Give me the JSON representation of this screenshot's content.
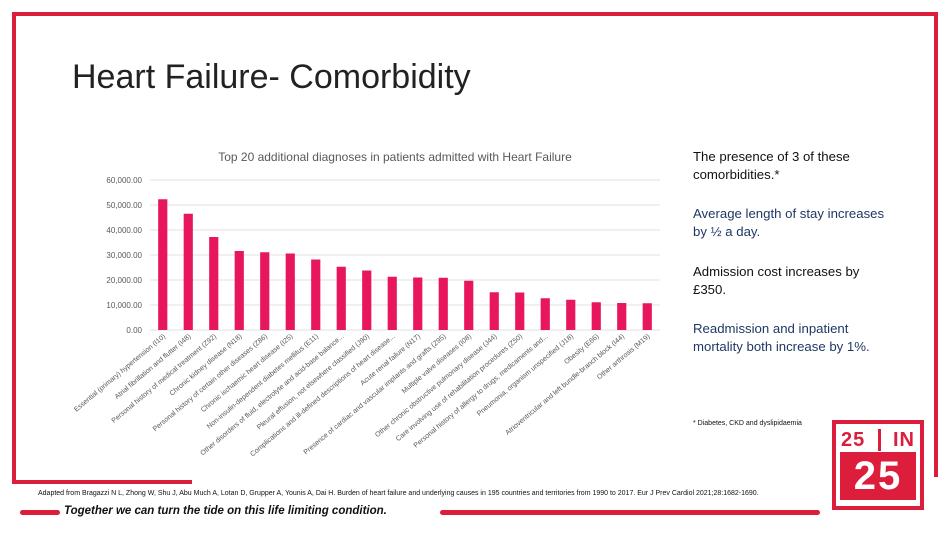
{
  "slide": {
    "title": "Heart Failure- Comorbidity",
    "accent_color": "#dc1e3c",
    "text_blue": "#1f3864"
  },
  "side_panel": {
    "p1": "The presence of 3 of these comorbidities.*",
    "p2": "Average length of stay increases by ½ a day.",
    "p3": "Admission cost increases by £350.",
    "p4": "Readmission and inpatient mortality both increase by 1%.",
    "footnote": "* Diabetes, CKD and dyslipidaemia"
  },
  "citation": "Adapted from Bragazzi N L, Zhong W, Shu J, Abu Much A, Lotan D, Grupper A, Younis A, Dai H. Burden of heart failure and underlying causes in 195 countries and territories from 1990 to 2017. Eur J Prev Cardiol 2021;28:1682-1690.",
  "tagline": "Together we can turn the tide on this life limiting condition.",
  "logo": {
    "top_left": "25",
    "top_right": "IN",
    "bottom": "25"
  },
  "chart_data": {
    "type": "bar",
    "title": "Top 20 additional diagnoses in patients admitted with Heart Failure",
    "xlabel": "",
    "ylabel": "",
    "ylim": [
      0,
      60000
    ],
    "yticks": [
      "0.00",
      "10,000.00",
      "20,000.00",
      "30,000.00",
      "40,000.00",
      "50,000.00",
      "60,000.00"
    ],
    "grid": true,
    "bar_color": "#e8175d",
    "categories": [
      "Essential (primary) hypertension (I10)",
      "Atrial fibrillation and flutter (I48)",
      "Personal history of medical treatment (Z92)",
      "Chronic kidney disease (N18)",
      "Personal history of certain other diseases (Z86)",
      "Chronic ischaemic heart disease (I25)",
      "Non-insulin-dependent diabetes mellitus (E11)",
      "Other disorders of fluid, electrolyte and acid-base balance...",
      "Pleural effusion, not elsewhere classified (J90)",
      "Complications and ill-defined descriptions of heart disease...",
      "Acute renal failure (N17)",
      "Presence of cardiac and vascular implants and grafts (Z95)",
      "Multiple valve diseases (I08)",
      "Other chronic obstructive pulmonary disease (J44)",
      "Care involving use of rehabilitation procedures (Z50)",
      "Personal history of allergy to drugs, medicaments and...",
      "Pneumonia, organism unspecified (J18)",
      "Obesity (E66)",
      "Atrioventricular and left bundle-branch block (I44)",
      "Other arthrosis (M19)"
    ],
    "values": [
      52300,
      46500,
      37200,
      31600,
      31100,
      30600,
      28200,
      25300,
      23800,
      21300,
      21000,
      20900,
      19700,
      15100,
      15000,
      12700,
      12100,
      11100,
      10800,
      10700
    ]
  }
}
